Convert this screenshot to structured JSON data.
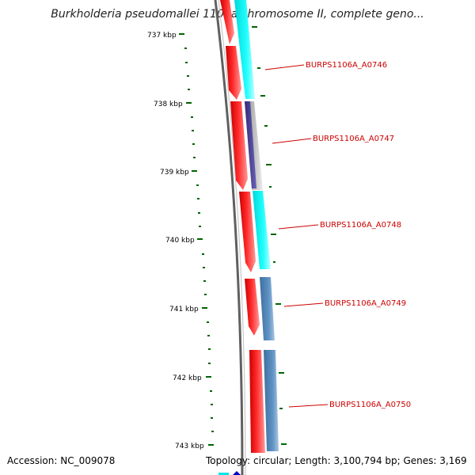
{
  "header": {
    "title": "Burkholderia pseudomallei 1106a chromosome II, complete geno..."
  },
  "footer": {
    "accession": "Accession: NC_009078",
    "topology": "Topology: circular; Length: 3,100,794 bp; Genes: 3,169"
  },
  "ruler": {
    "major_ticks": [
      "737 kbp",
      "738 kbp",
      "739 kbp",
      "740 kbp",
      "741 kbp",
      "742 kbp",
      "743 kbp"
    ]
  },
  "genes": [
    {
      "label": "BURPS1106A_A0746"
    },
    {
      "label": "BURPS1106A_A0747"
    },
    {
      "label": "BURPS1106A_A0748"
    },
    {
      "label": "BURPS1106A_A0749"
    },
    {
      "label": "BURPS1106A_A0750"
    }
  ],
  "colors": {
    "cds": "#ff0000",
    "blast_cyan": "#00e5e5",
    "blast_steel": "#5b8fbf",
    "blast_grey": "#b0b0b0",
    "blast_purple": "#4a3f9a",
    "tick": "#006400",
    "backbone": "#707070",
    "gene_label": "#cc0000"
  }
}
